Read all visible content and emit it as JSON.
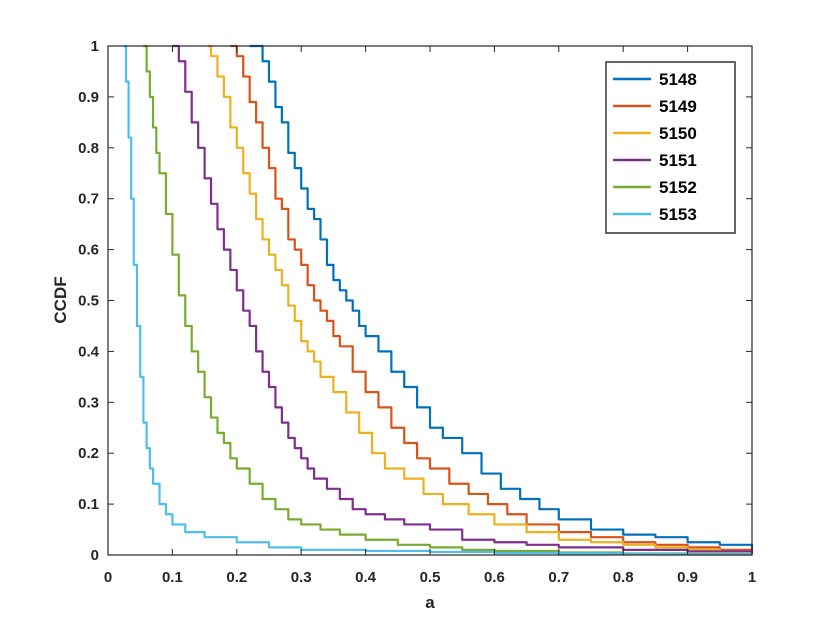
{
  "chart_data": {
    "type": "line",
    "title": "",
    "xlabel": "a",
    "ylabel": "CCDF",
    "xlim": [
      0,
      1
    ],
    "ylim": [
      0,
      1
    ],
    "x_ticks": [
      "0",
      "0.1",
      "0.2",
      "0.3",
      "0.4",
      "0.5",
      "0.6",
      "0.7",
      "0.8",
      "0.9",
      "1"
    ],
    "y_ticks": [
      "0",
      "0.1",
      "0.2",
      "0.3",
      "0.4",
      "0.5",
      "0.6",
      "0.7",
      "0.8",
      "0.9",
      "1"
    ],
    "grid": false,
    "legend_position": "top-right",
    "series": [
      {
        "name": "5148",
        "color": "#0072BD",
        "x": [
          0.22,
          0.24,
          0.25,
          0.26,
          0.27,
          0.28,
          0.29,
          0.3,
          0.31,
          0.32,
          0.33,
          0.34,
          0.35,
          0.36,
          0.37,
          0.38,
          0.39,
          0.4,
          0.42,
          0.44,
          0.46,
          0.48,
          0.5,
          0.52,
          0.55,
          0.58,
          0.61,
          0.64,
          0.67,
          0.7,
          0.75,
          0.8,
          0.85,
          0.9,
          0.95,
          1.0
        ],
        "y": [
          1.0,
          0.97,
          0.93,
          0.88,
          0.85,
          0.79,
          0.76,
          0.72,
          0.68,
          0.66,
          0.62,
          0.57,
          0.54,
          0.52,
          0.5,
          0.48,
          0.45,
          0.43,
          0.4,
          0.36,
          0.33,
          0.29,
          0.25,
          0.23,
          0.2,
          0.16,
          0.13,
          0.11,
          0.09,
          0.07,
          0.05,
          0.04,
          0.035,
          0.025,
          0.02,
          0.01
        ]
      },
      {
        "name": "5149",
        "color": "#D95319",
        "x": [
          0.19,
          0.2,
          0.21,
          0.22,
          0.23,
          0.24,
          0.25,
          0.26,
          0.27,
          0.28,
          0.29,
          0.3,
          0.31,
          0.32,
          0.33,
          0.34,
          0.35,
          0.36,
          0.38,
          0.4,
          0.42,
          0.44,
          0.46,
          0.48,
          0.5,
          0.53,
          0.56,
          0.59,
          0.62,
          0.65,
          0.7,
          0.75,
          0.8,
          0.85,
          0.9,
          0.95,
          1.0
        ],
        "y": [
          1.0,
          0.98,
          0.94,
          0.89,
          0.85,
          0.8,
          0.76,
          0.7,
          0.68,
          0.62,
          0.6,
          0.57,
          0.53,
          0.5,
          0.48,
          0.46,
          0.43,
          0.41,
          0.36,
          0.32,
          0.29,
          0.25,
          0.22,
          0.19,
          0.17,
          0.14,
          0.12,
          0.1,
          0.08,
          0.06,
          0.045,
          0.035,
          0.025,
          0.02,
          0.015,
          0.01,
          0.005
        ]
      },
      {
        "name": "5150",
        "color": "#EDB120",
        "x": [
          0.155,
          0.16,
          0.17,
          0.18,
          0.19,
          0.2,
          0.21,
          0.22,
          0.23,
          0.24,
          0.25,
          0.26,
          0.27,
          0.28,
          0.29,
          0.3,
          0.31,
          0.32,
          0.33,
          0.35,
          0.37,
          0.39,
          0.41,
          0.43,
          0.46,
          0.49,
          0.52,
          0.56,
          0.6,
          0.65,
          0.7,
          0.75,
          0.8,
          0.85,
          0.9,
          0.95,
          1.0
        ],
        "y": [
          1.0,
          0.98,
          0.94,
          0.9,
          0.84,
          0.8,
          0.75,
          0.71,
          0.66,
          0.62,
          0.59,
          0.56,
          0.53,
          0.49,
          0.46,
          0.42,
          0.4,
          0.38,
          0.35,
          0.32,
          0.28,
          0.24,
          0.2,
          0.17,
          0.15,
          0.12,
          0.1,
          0.08,
          0.06,
          0.045,
          0.03,
          0.025,
          0.02,
          0.015,
          0.01,
          0.007,
          0.003
        ]
      },
      {
        "name": "5151",
        "color": "#7E2F8E",
        "x": [
          0.1,
          0.11,
          0.12,
          0.13,
          0.14,
          0.15,
          0.16,
          0.17,
          0.18,
          0.19,
          0.2,
          0.21,
          0.22,
          0.23,
          0.24,
          0.25,
          0.26,
          0.27,
          0.28,
          0.29,
          0.3,
          0.31,
          0.32,
          0.34,
          0.36,
          0.38,
          0.4,
          0.43,
          0.46,
          0.5,
          0.55,
          0.6,
          0.65,
          0.7,
          0.8,
          0.9,
          1.0
        ],
        "y": [
          1.0,
          0.97,
          0.91,
          0.85,
          0.8,
          0.74,
          0.69,
          0.64,
          0.6,
          0.56,
          0.52,
          0.48,
          0.45,
          0.4,
          0.36,
          0.33,
          0.29,
          0.26,
          0.23,
          0.21,
          0.19,
          0.17,
          0.15,
          0.13,
          0.11,
          0.09,
          0.08,
          0.07,
          0.06,
          0.05,
          0.03,
          0.025,
          0.02,
          0.015,
          0.01,
          0.007,
          0.003
        ]
      },
      {
        "name": "5152",
        "color": "#77AC30",
        "x": [
          0.055,
          0.06,
          0.065,
          0.07,
          0.075,
          0.08,
          0.09,
          0.1,
          0.11,
          0.12,
          0.13,
          0.14,
          0.15,
          0.16,
          0.17,
          0.18,
          0.19,
          0.2,
          0.22,
          0.24,
          0.26,
          0.28,
          0.3,
          0.33,
          0.36,
          0.4,
          0.45,
          0.5,
          0.55,
          0.6,
          0.7,
          0.8,
          0.9,
          1.0
        ],
        "y": [
          1.0,
          0.95,
          0.9,
          0.84,
          0.79,
          0.75,
          0.67,
          0.59,
          0.51,
          0.45,
          0.4,
          0.36,
          0.31,
          0.27,
          0.24,
          0.22,
          0.19,
          0.17,
          0.14,
          0.11,
          0.09,
          0.07,
          0.06,
          0.05,
          0.04,
          0.03,
          0.02,
          0.015,
          0.01,
          0.008,
          0.005,
          0.003,
          0.002,
          0.001
        ]
      },
      {
        "name": "5153",
        "color": "#4DBEEE",
        "x": [
          0.025,
          0.028,
          0.032,
          0.036,
          0.04,
          0.045,
          0.05,
          0.055,
          0.06,
          0.065,
          0.07,
          0.08,
          0.09,
          0.1,
          0.12,
          0.15,
          0.2,
          0.25,
          0.3,
          0.4,
          0.5,
          0.6,
          0.7,
          0.8,
          0.9,
          1.0
        ],
        "y": [
          1.0,
          0.93,
          0.82,
          0.7,
          0.57,
          0.45,
          0.35,
          0.26,
          0.21,
          0.17,
          0.14,
          0.1,
          0.08,
          0.06,
          0.045,
          0.035,
          0.025,
          0.015,
          0.01,
          0.008,
          0.006,
          0.004,
          0.003,
          0.002,
          0.001,
          0.0
        ]
      }
    ]
  }
}
